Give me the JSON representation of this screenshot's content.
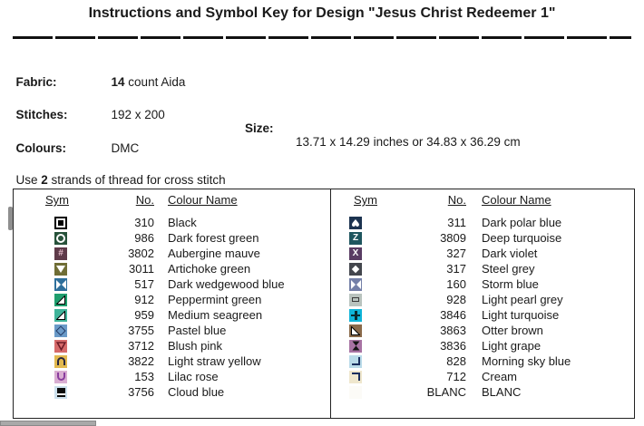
{
  "title": "Instructions and Symbol Key for Design \"Jesus Christ Redeemer 1\"",
  "info": {
    "fabric_label": "Fabric:",
    "fabric_value_bold": "14",
    "fabric_value_rest": " count Aida",
    "stitches_label": "Stitches:",
    "stitches_value": "192 x 200",
    "size_label": "Size:",
    "size_value": "13.71 x 14.29 inches or 34.83 x 36.29 cm",
    "colours_label": "Colours:",
    "colours_value": "DMC",
    "strands_prefix": "Use ",
    "strands_bold": "2",
    "strands_suffix": " strands of thread for cross stitch"
  },
  "key_table": {
    "headers": {
      "sym": "Sym",
      "no": "No.",
      "colour_name": "Colour Name"
    },
    "left_rows": [
      {
        "no": "310",
        "name": "Black",
        "icon": "square-outline-icon",
        "bg": "#000000",
        "glyph": {
          "type": "square-outline",
          "color": "#ffffff"
        }
      },
      {
        "no": "986",
        "name": "Dark forest green",
        "icon": "circle-outline-icon",
        "bg": "#27523a",
        "glyph": {
          "type": "circle-outline",
          "color": "#ffffff"
        }
      },
      {
        "no": "3802",
        "name": "Aubergine mauve",
        "icon": "hash-icon",
        "bg": "#5e3a49",
        "glyph": {
          "type": "hash",
          "color": "#e3bac8"
        }
      },
      {
        "no": "3011",
        "name": "Artichoke green",
        "icon": "triangle-down-icon",
        "bg": "#6f6d35",
        "glyph": {
          "type": "triangle-down",
          "color": "#ffffff"
        }
      },
      {
        "no": "517",
        "name": "Dark wedgewood blue",
        "icon": "bowtie-icon",
        "bg": "#2e6f9b",
        "glyph": {
          "type": "bowtie",
          "color": "#ffffff"
        }
      },
      {
        "no": "912",
        "name": "Peppermint green",
        "icon": "triangle-lower-right-icon",
        "bg": "#1f9e6e",
        "glyph": {
          "type": "tri-br",
          "color": "#ffffff"
        }
      },
      {
        "no": "959",
        "name": "Medium seagreen",
        "icon": "triangle-lower-right-icon",
        "bg": "#3fb49a",
        "glyph": {
          "type": "tri-br",
          "color": "#ffffff"
        }
      },
      {
        "no": "3755",
        "name": "Pastel blue",
        "icon": "diamond-outline-icon",
        "bg": "#6a9ac8",
        "glyph": {
          "type": "diamond-outline",
          "color": "#223a66"
        }
      },
      {
        "no": "3712",
        "name": "Blush pink",
        "icon": "triangle-down-outline-icon",
        "bg": "#d66a6a",
        "glyph": {
          "type": "tri-down-outline",
          "color": "#6e1c28"
        }
      },
      {
        "no": "3822",
        "name": "Light straw yellow",
        "icon": "arch-n-icon",
        "bg": "#e2b94f",
        "glyph": {
          "type": "arch-n",
          "color": "#26263e"
        }
      },
      {
        "no": "153",
        "name": "Lilac rose",
        "icon": "arch-u-icon",
        "bg": "#d9aed2",
        "glyph": {
          "type": "arch-u",
          "color": "#8a3d9e"
        }
      },
      {
        "no": "3756",
        "name": "Cloud blue",
        "icon": "black-bar-icon",
        "bg": "#cde1ee",
        "glyph": {
          "type": "bar-underline",
          "color": "#0c0c0c"
        }
      }
    ],
    "right_rows": [
      {
        "no": "311",
        "name": "Dark polar blue",
        "icon": "heart-down-icon",
        "bg": "#1c3350",
        "glyph": {
          "type": "heart-down",
          "color": "#ffffff"
        }
      },
      {
        "no": "3809",
        "name": "Deep turquoise",
        "icon": "letter-z-icon",
        "bg": "#1e555e",
        "glyph": {
          "type": "letter",
          "text": "Z",
          "color": "#ffffff"
        }
      },
      {
        "no": "327",
        "name": "Dark violet",
        "icon": "letter-x-icon",
        "bg": "#593c63",
        "glyph": {
          "type": "letter",
          "text": "X",
          "color": "#ffffff"
        }
      },
      {
        "no": "317",
        "name": "Steel grey",
        "icon": "diamond-icon",
        "bg": "#43464d",
        "glyph": {
          "type": "diamond-filled",
          "color": "#ffffff"
        }
      },
      {
        "no": "160",
        "name": "Storm blue",
        "icon": "bowtie-icon",
        "bg": "#7480a8",
        "glyph": {
          "type": "bowtie",
          "color": "#ffffff"
        }
      },
      {
        "no": "928",
        "name": "Light pearl grey",
        "icon": "rect-outline-icon",
        "bg": "#b9c3be",
        "glyph": {
          "type": "rect-outline",
          "color": "#3a3a3a"
        }
      },
      {
        "no": "3846",
        "name": "Light turquoise",
        "icon": "plus-icon",
        "bg": "#0fb4d8",
        "glyph": {
          "type": "plus",
          "color": "#0a2a30"
        }
      },
      {
        "no": "3863",
        "name": "Otter brown",
        "icon": "triangle-lower-left-icon",
        "bg": "#8a6a4a",
        "glyph": {
          "type": "tri-bl",
          "color": "#ffffff"
        }
      },
      {
        "no": "3836",
        "name": "Light grape",
        "icon": "hourglass-icon",
        "bg": "#a873a3",
        "glyph": {
          "type": "hourglass",
          "color": "#141414"
        }
      },
      {
        "no": "828",
        "name": "Morning sky blue",
        "icon": "corner-bottom-right-icon",
        "bg": "#badbe9",
        "glyph": {
          "type": "corner-br",
          "color": "#1b2f5e"
        }
      },
      {
        "no": "712",
        "name": "Cream",
        "icon": "corner-top-right-icon",
        "bg": "#efe7cd",
        "glyph": {
          "type": "corner-tr",
          "color": "#1b2f5e"
        }
      },
      {
        "no": "BLANC",
        "name": "BLANC",
        "icon": "blank-icon",
        "bg": "#fcfbf7",
        "glyph": {
          "type": "blank",
          "color": "#ffffff"
        }
      }
    ]
  }
}
